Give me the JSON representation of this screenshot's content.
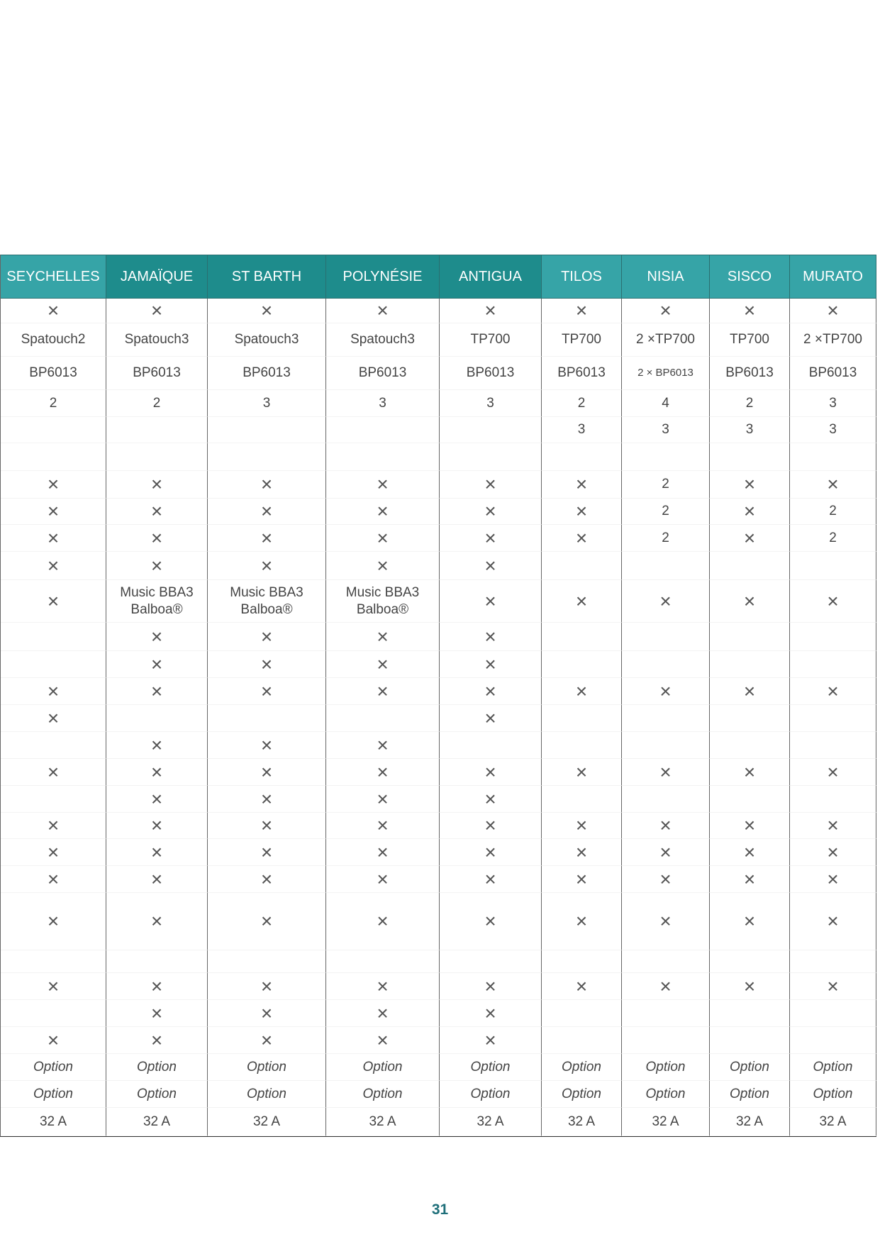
{
  "colors": {
    "header_light": "#36a4a7",
    "header_dark": "#1e8c8c",
    "page_number": "#1f6f7a"
  },
  "table": {
    "headers": [
      {
        "label": "SEYCHELLES",
        "shade": "light"
      },
      {
        "label": "JAMAÏQUE",
        "shade": "dark"
      },
      {
        "label": "ST BARTH",
        "shade": "dark"
      },
      {
        "label": "POLYNÉSIE",
        "shade": "dark"
      },
      {
        "label": "ANTIGUA",
        "shade": "dark"
      },
      {
        "label": "TILOS",
        "shade": "light"
      },
      {
        "label": "NISIA",
        "shade": "light"
      },
      {
        "label": "SISCO",
        "shade": "light"
      },
      {
        "label": "MURATO",
        "shade": "light"
      }
    ],
    "rows": [
      [
        "×",
        "×",
        "×",
        "×",
        "×",
        "×",
        "×",
        "×",
        "×"
      ],
      [
        "Spatouch2",
        "Spatouch3",
        "Spatouch3",
        "Spatouch3",
        "TP700",
        "TP700",
        "2 ×TP700",
        "TP700",
        "2 ×TP700"
      ],
      [
        "BP6013",
        "BP6013",
        "BP6013",
        "BP6013",
        "BP6013",
        "BP6013",
        "2 × BP6013",
        "BP6013",
        "BP6013"
      ],
      [
        "2",
        "2",
        "3",
        "3",
        "3",
        "2",
        "4",
        "2",
        "3"
      ],
      [
        "",
        "",
        "",
        "",
        "",
        "3",
        "3",
        "3",
        "3"
      ],
      [
        "",
        "",
        "",
        "",
        "",
        "",
        "",
        "",
        ""
      ],
      [
        "×",
        "×",
        "×",
        "×",
        "×",
        "×",
        "2",
        "×",
        "×"
      ],
      [
        "×",
        "×",
        "×",
        "×",
        "×",
        "×",
        "2",
        "×",
        "2"
      ],
      [
        "×",
        "×",
        "×",
        "×",
        "×",
        "×",
        "2",
        "×",
        "2"
      ],
      [
        "×",
        "×",
        "×",
        "×",
        "×",
        "",
        "",
        "",
        ""
      ],
      [
        "×",
        "Music BBA3 Balboa®",
        "Music BBA3 Balboa®",
        "Music BBA3 Balboa®",
        "×",
        "×",
        "×",
        "×",
        "×"
      ],
      [
        "",
        "×",
        "×",
        "×",
        "×",
        "",
        "",
        "",
        ""
      ],
      [
        "",
        "×",
        "×",
        "×",
        "×",
        "",
        "",
        "",
        ""
      ],
      [
        "×",
        "×",
        "×",
        "×",
        "×",
        "×",
        "×",
        "×",
        "×"
      ],
      [
        "×",
        "",
        "",
        "",
        "×",
        "",
        "",
        "",
        ""
      ],
      [
        "",
        "×",
        "×",
        "×",
        "",
        "",
        "",
        "",
        ""
      ],
      [
        "×",
        "×",
        "×",
        "×",
        "×",
        "×",
        "×",
        "×",
        "×"
      ],
      [
        "",
        "×",
        "×",
        "×",
        "×",
        "",
        "",
        "",
        ""
      ],
      [
        "×",
        "×",
        "×",
        "×",
        "×",
        "×",
        "×",
        "×",
        "×"
      ],
      [
        "×",
        "×",
        "×",
        "×",
        "×",
        "×",
        "×",
        "×",
        "×"
      ],
      [
        "×",
        "×",
        "×",
        "×",
        "×",
        "×",
        "×",
        "×",
        "×"
      ],
      [
        "×",
        "×",
        "×",
        "×",
        "×",
        "×",
        "×",
        "×",
        "×"
      ],
      [
        "",
        "",
        "",
        "",
        "",
        "",
        "",
        "",
        ""
      ],
      [
        "×",
        "×",
        "×",
        "×",
        "×",
        "×",
        "×",
        "×",
        "×"
      ],
      [
        "",
        "×",
        "×",
        "×",
        "×",
        "",
        "",
        "",
        ""
      ],
      [
        "×",
        "×",
        "×",
        "×",
        "×",
        "",
        "",
        "",
        ""
      ],
      [
        "Option",
        "Option",
        "Option",
        "Option",
        "Option",
        "Option",
        "Option",
        "Option",
        "Option"
      ],
      [
        "Option",
        "Option",
        "Option",
        "Option",
        "Option",
        "Option",
        "Option",
        "Option",
        "Option"
      ],
      [
        "32 A",
        "32 A",
        "32 A",
        "32 A",
        "32 A",
        "32 A",
        "32 A",
        "32 A",
        "32 A"
      ]
    ]
  },
  "page_number": "31"
}
